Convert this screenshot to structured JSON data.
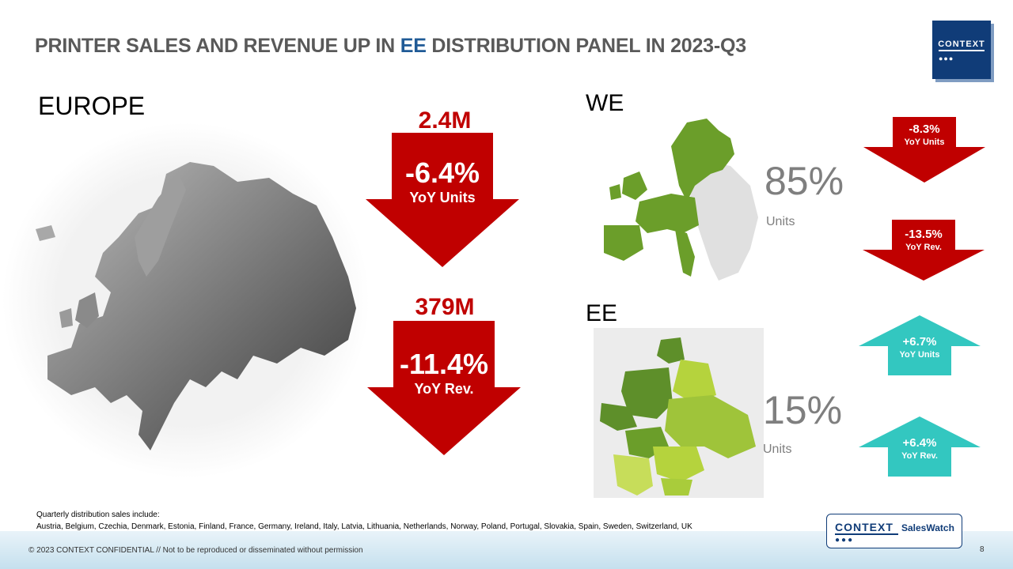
{
  "title": {
    "before": "PRINTER SALES AND REVENUE UP IN ",
    "highlight": "EE",
    "after": " DISTRIBUTION PANEL IN 2023-Q3"
  },
  "logo": {
    "text": "CONTEXT",
    "dots": "●●●"
  },
  "europe": {
    "label": "EUROPE",
    "units": {
      "value": "2.4M",
      "change": "-6.4%",
      "caption": "YoY Units"
    },
    "revenue": {
      "value": "379M",
      "change": "-11.4%",
      "caption": "YoY Rev."
    }
  },
  "we": {
    "label": "WE",
    "share": "85%",
    "share_unit": "Units",
    "units": {
      "change": "-8.3%",
      "caption": "YoY Units",
      "direction": "down"
    },
    "revenue": {
      "change": "-13.5%",
      "caption": "YoY Rev.",
      "direction": "down"
    }
  },
  "ee": {
    "label": "EE",
    "share": "15%",
    "share_unit": "Units",
    "units": {
      "change": "+6.7%",
      "caption": "YoY Units",
      "direction": "up"
    },
    "revenue": {
      "change": "+6.4%",
      "caption": "YoY Rev.",
      "direction": "up"
    }
  },
  "footnote": {
    "line1": "Quarterly distribution sales include:",
    "line2": "Austria, Belgium, Czechia, Denmark, Estonia, Finland, France, Germany, Ireland, Italy, Latvia, Lithuania, Netherlands, Norway, Poland, Portugal, Slovakia, Spain, Sweden, Switzerland, UK"
  },
  "footer": {
    "copyright": "© 2023 CONTEXT CONFIDENTIAL // Not to be reproduced or disseminated without permission",
    "page": "8",
    "saleswatch_brand": "CONTEXT",
    "saleswatch_product": "SalesWatch"
  },
  "colors": {
    "down": "#c00000",
    "up": "#33c7c0",
    "title_highlight": "#1f5a96",
    "brand": "#103c78",
    "we_green": "#6b9e2a",
    "ee_green": "#b5d33d",
    "ee_dark": "#5e8f2a"
  }
}
